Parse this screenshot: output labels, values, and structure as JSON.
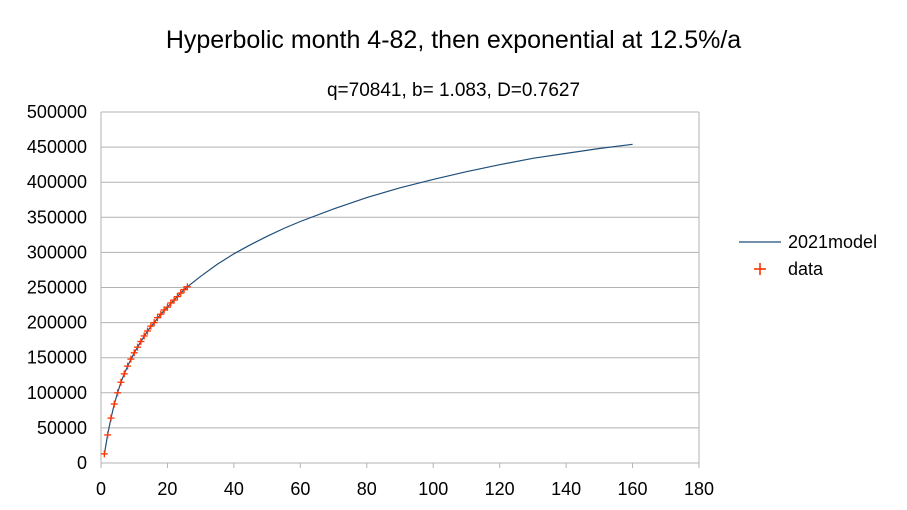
{
  "chart_data": {
    "type": "line",
    "title": "Hyperbolic month 4-82, then exponential at 12.5%/a",
    "subtitle": "q=70841, b= 1.083, D=0.7627",
    "xlabel": "",
    "ylabel": "",
    "xlim": [
      0,
      180
    ],
    "ylim": [
      0,
      500000
    ],
    "x_ticks": [
      0,
      20,
      40,
      60,
      80,
      100,
      120,
      140,
      160,
      180
    ],
    "y_ticks": [
      0,
      50000,
      100000,
      150000,
      200000,
      250000,
      300000,
      350000,
      400000,
      450000,
      500000
    ],
    "grid": "horizontal",
    "legend_position": "right",
    "series": [
      {
        "name": "2021model",
        "kind": "line",
        "color": "#1f4e79",
        "x": [
          1,
          2,
          3,
          4,
          5,
          6,
          7,
          8,
          10,
          12,
          14,
          16,
          18,
          20,
          22,
          24,
          26,
          30,
          35,
          40,
          45,
          50,
          55,
          60,
          70,
          80,
          90,
          100,
          110,
          120,
          130,
          140,
          150,
          160
        ],
        "y": [
          12000,
          40000,
          64000,
          84000,
          100000,
          115000,
          127000,
          138000,
          157000,
          173000,
          188000,
          200000,
          212000,
          222000,
          232000,
          242000,
          251000,
          266000,
          283000,
          298000,
          311000,
          323000,
          334000,
          344000,
          362000,
          378000,
          392000,
          404000,
          415000,
          425000,
          434000,
          441000,
          448000,
          454000
        ]
      },
      {
        "name": "data",
        "kind": "scatter",
        "marker": "+",
        "color": "#ff3300",
        "x": [
          1,
          2,
          3,
          4,
          5,
          6,
          7,
          8,
          9,
          10,
          11,
          12,
          13,
          14,
          15,
          16,
          17,
          18,
          19,
          20,
          21,
          22,
          23,
          24,
          25,
          26
        ],
        "y": [
          13000,
          40000,
          64000,
          84000,
          100000,
          115000,
          127000,
          138000,
          148000,
          157000,
          165000,
          173000,
          181000,
          188000,
          195000,
          200000,
          207000,
          212000,
          218000,
          222000,
          228000,
          232000,
          237000,
          242000,
          247000,
          251000
        ]
      }
    ]
  }
}
